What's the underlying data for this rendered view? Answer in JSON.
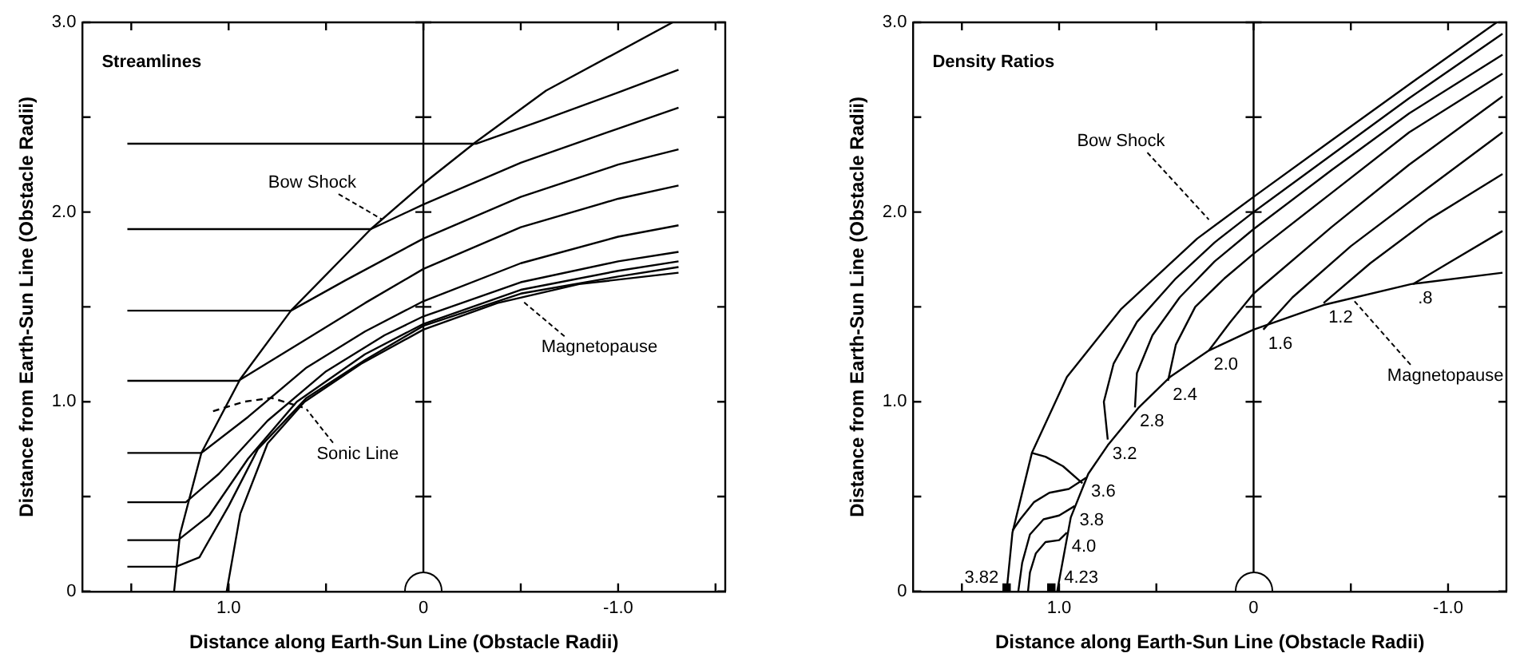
{
  "chart_data": [
    {
      "type": "line",
      "title": "Streamlines",
      "xlabel": "Distance along Earth-Sun Line (Obstacle Radii)",
      "ylabel": "Distance from Earth-Sun Line (Obstacle Radii)",
      "xlim": [
        1.75,
        -1.55
      ],
      "ylim": [
        0,
        3
      ],
      "xticks": [
        {
          "value": 1.5,
          "label": null
        },
        {
          "value": 1,
          "label": "1.0"
        },
        {
          "value": 0.5,
          "label": null
        },
        0,
        {
          "value": -0.5,
          "label": null
        },
        {
          "value": -1,
          "label": "-1.0"
        },
        {
          "value": -1.5,
          "label": null
        }
      ],
      "yticks": [
        0,
        {
          "value": 0.5,
          "label": null
        },
        {
          "value": 1,
          "label": "1.0"
        },
        {
          "value": 1.5,
          "label": null
        },
        {
          "value": 2,
          "label": "2.0"
        },
        {
          "value": 2.5,
          "label": null
        },
        {
          "value": 3,
          "label": "3.0"
        }
      ],
      "grid": false,
      "marker": "none",
      "line_style": "solid",
      "ref_lines": [
        {
          "axis": "x",
          "value": 0
        }
      ],
      "annotations": [
        {
          "text": "Bow Shock",
          "x": 0.21,
          "y": 1.96
        },
        {
          "text": "Sonic Line",
          "x": 0.6,
          "y": 0.96
        },
        {
          "text": "Magnetopause",
          "x": -0.51,
          "y": 1.53
        }
      ],
      "series": [
        {
          "color": "#000000",
          "x": [
            1.28,
            1.25,
            1.14,
            0.94,
            0.68,
            0.27,
            0,
            -0.27,
            -0.63,
            -1.28
          ],
          "values": [
            0,
            0.3,
            0.73,
            1.12,
            1.48,
            1.91,
            2.15,
            2.37,
            2.64,
            3.0
          ]
        },
        {
          "color": "#000000",
          "x": [
            1.01,
            0.94,
            0.8,
            0.61,
            0.32,
            0,
            -0.38,
            -0.8,
            -1.31
          ],
          "values": [
            0,
            0.41,
            0.78,
            1.0,
            1.2,
            1.38,
            1.52,
            1.62,
            1.68
          ]
        },
        {
          "color": "#000000",
          "x": [
            1.52,
            -0.27,
            -0.6,
            -1.0,
            -1.31
          ],
          "values": [
            2.36,
            2.36,
            2.48,
            2.63,
            2.75
          ]
        },
        {
          "color": "#000000",
          "x": [
            1.52,
            0.27,
            0,
            -0.5,
            -1.0,
            -1.31
          ],
          "values": [
            1.91,
            1.91,
            2.04,
            2.26,
            2.44,
            2.55
          ]
        },
        {
          "color": "#000000",
          "x": [
            1.52,
            0.68,
            0.4,
            0,
            -0.5,
            -1.0,
            -1.31
          ],
          "values": [
            1.48,
            1.48,
            1.64,
            1.86,
            2.08,
            2.25,
            2.33
          ]
        },
        {
          "color": "#000000",
          "x": [
            1.52,
            0.95,
            0.6,
            0.3,
            0,
            -0.5,
            -1.0,
            -1.31
          ],
          "values": [
            1.11,
            1.11,
            1.33,
            1.52,
            1.7,
            1.92,
            2.07,
            2.14
          ]
        },
        {
          "color": "#000000",
          "x": [
            1.52,
            1.14,
            0.9,
            0.6,
            0.3,
            0,
            -0.5,
            -1.0,
            -1.31
          ],
          "values": [
            0.73,
            0.73,
            0.92,
            1.18,
            1.37,
            1.53,
            1.73,
            1.87,
            1.93
          ]
        },
        {
          "color": "#000000",
          "x": [
            1.52,
            1.22,
            1.05,
            0.8,
            0.5,
            0.2,
            0,
            -0.5,
            -1.0,
            -1.31
          ],
          "values": [
            0.47,
            0.47,
            0.62,
            0.9,
            1.16,
            1.35,
            1.45,
            1.63,
            1.74,
            1.79
          ]
        },
        {
          "color": "#000000",
          "x": [
            1.52,
            1.26,
            1.1,
            0.9,
            0.65,
            0.3,
            0,
            -0.5,
            -1.0,
            -1.31
          ],
          "values": [
            0.27,
            0.27,
            0.4,
            0.7,
            1.0,
            1.25,
            1.41,
            1.59,
            1.69,
            1.74
          ]
        },
        {
          "color": "#000000",
          "x": [
            1.52,
            1.27,
            1.15,
            1.0,
            0.85,
            0.6,
            0.3,
            0,
            -0.5,
            -1.0,
            -1.31
          ],
          "values": [
            0.13,
            0.13,
            0.18,
            0.45,
            0.75,
            1.02,
            1.22,
            1.4,
            1.57,
            1.66,
            1.71
          ]
        },
        {
          "color": "#000000",
          "line_style": "dashed",
          "x": [
            1.08,
            0.92,
            0.78,
            0.62
          ],
          "values": [
            0.95,
            1.0,
            1.02,
            0.97
          ]
        }
      ]
    },
    {
      "type": "line",
      "title": "Density Ratios",
      "xlabel": "Distance along Earth-Sun Line (Obstacle Radii)",
      "ylabel": "Distance from Earth-Sun Line (Obstacle Radii)",
      "xlim": [
        1.75,
        -1.3
      ],
      "ylim": [
        0,
        3
      ],
      "xticks": [
        {
          "value": 1.5,
          "label": null
        },
        {
          "value": 1,
          "label": "1.0"
        },
        {
          "value": 0.5,
          "label": null
        },
        0,
        {
          "value": -0.5,
          "label": null
        },
        {
          "value": -1,
          "label": "-1.0"
        }
      ],
      "yticks": [
        0,
        {
          "value": 0.5,
          "label": null
        },
        {
          "value": 1,
          "label": "1.0"
        },
        {
          "value": 1.5,
          "label": null
        },
        {
          "value": 2,
          "label": "2.0"
        },
        {
          "value": 2.5,
          "label": null
        },
        {
          "value": 3,
          "label": "3.0"
        }
      ],
      "grid": false,
      "marker": "none",
      "line_style": "solid",
      "ref_lines": [
        {
          "axis": "x",
          "value": 0
        }
      ],
      "annotations": [
        {
          "text": "Bow Shock",
          "x": 0.23,
          "y": 1.96
        },
        {
          "text": "Magnetopause",
          "x": -0.51,
          "y": 1.54
        }
      ],
      "series": [
        {
          "color": "#000000",
          "x": [
            1.27,
            1.24,
            1.14,
            0.96,
            0.68,
            0.29,
            0,
            -0.39,
            -0.81,
            -1.25
          ],
          "values": [
            0,
            0.31,
            0.73,
            1.13,
            1.49,
            1.86,
            2.08,
            2.37,
            2.68,
            3.0
          ]
        },
        {
          "color": "#000000",
          "x": [
            1.01,
            0.94,
            0.85,
            0.75,
            0.59,
            0.43,
            0.23,
            0,
            -0.36,
            -0.81,
            -1.28
          ],
          "values": [
            0,
            0.39,
            0.62,
            0.77,
            0.97,
            1.13,
            1.27,
            1.38,
            1.51,
            1.62,
            1.68
          ]
        },
        {
          "name": "4.0",
          "color": "#000000",
          "x": [
            0.96,
            1.0,
            1.07,
            1.12,
            1.15,
            1.16
          ],
          "values": [
            0.31,
            0.27,
            0.26,
            0.2,
            0.1,
            0
          ]
        },
        {
          "name": "3.8",
          "color": "#000000",
          "x": [
            0.92,
            1.0,
            1.08,
            1.15,
            1.19,
            1.21
          ],
          "values": [
            0.45,
            0.4,
            0.38,
            0.3,
            0.15,
            0
          ]
        },
        {
          "name": "3.6",
          "color": "#000000",
          "x": [
            0.86,
            0.95,
            1.05,
            1.13,
            1.2,
            1.24
          ],
          "values": [
            0.6,
            0.54,
            0.52,
            0.47,
            0.38,
            0.32
          ]
        },
        {
          "color": "#000000",
          "x": [
            0.88,
            0.98,
            1.07,
            1.14
          ],
          "values": [
            0.57,
            0.66,
            0.71,
            0.73
          ]
        },
        {
          "name": "3.2",
          "color": "#000000",
          "x": [
            0.75,
            0.77,
            0.72,
            0.6,
            0.4,
            0.2,
            0,
            -0.4,
            -0.8,
            -1.28
          ],
          "values": [
            0.8,
            1.0,
            1.2,
            1.42,
            1.65,
            1.84,
            2.0,
            2.3,
            2.6,
            2.94
          ]
        },
        {
          "name": "2.8",
          "color": "#000000",
          "x": [
            0.61,
            0.6,
            0.52,
            0.38,
            0.2,
            0,
            -0.4,
            -0.8,
            -1.28
          ],
          "values": [
            0.97,
            1.15,
            1.35,
            1.55,
            1.74,
            1.91,
            2.22,
            2.52,
            2.83
          ]
        },
        {
          "name": "2.4",
          "color": "#000000",
          "x": [
            0.44,
            0.4,
            0.3,
            0.15,
            0,
            -0.4,
            -0.8,
            -1.28
          ],
          "values": [
            1.11,
            1.3,
            1.5,
            1.65,
            1.78,
            2.1,
            2.42,
            2.73
          ]
        },
        {
          "name": "2.0",
          "color": "#000000",
          "x": [
            0.23,
            0.12,
            0,
            -0.4,
            -0.8,
            -1.28
          ],
          "values": [
            1.27,
            1.42,
            1.57,
            1.92,
            2.25,
            2.61
          ]
        },
        {
          "name": "1.6",
          "color": "#000000",
          "x": [
            -0.05,
            -0.2,
            -0.5,
            -0.9,
            -1.28
          ],
          "values": [
            1.38,
            1.55,
            1.82,
            2.13,
            2.42
          ]
        },
        {
          "name": "1.2",
          "color": "#000000",
          "x": [
            -0.36,
            -0.6,
            -0.9,
            -1.28
          ],
          "values": [
            1.52,
            1.73,
            1.96,
            2.2
          ]
        },
        {
          "name": ".8",
          "color": "#000000",
          "x": [
            -0.82,
            -1.0,
            -1.28
          ],
          "values": [
            1.62,
            1.73,
            1.9
          ]
        },
        {
          "name": "3.82",
          "type": "scatter",
          "marker": "square",
          "color": "#000000",
          "x": [
            1.27
          ],
          "values": [
            0.02
          ]
        },
        {
          "name": "4.23",
          "type": "scatter",
          "marker": "square",
          "color": "#000000",
          "x": [
            1.04
          ],
          "values": [
            0.02
          ]
        }
      ]
    }
  ]
}
